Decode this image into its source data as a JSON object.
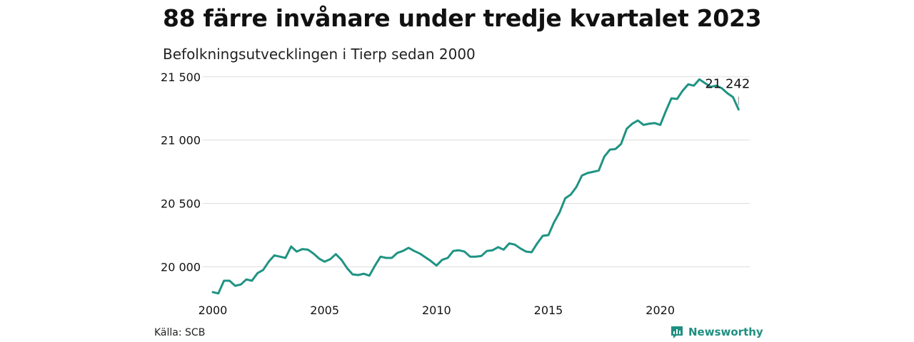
{
  "header": {
    "title": "88 färre invånare under tredje kvartalet 2023",
    "subtitle": "Befolkningsutvecklingen i Tierp sedan 2000"
  },
  "footer": {
    "source": "Källa: SCB",
    "brand": "Newsworthy",
    "brand_icon": "newsworthy-logo-icon"
  },
  "colors": {
    "line": "#1f9383",
    "grid": "#dddddd",
    "brand": "#1f8f80"
  },
  "chart_data": {
    "type": "line",
    "title": "88 färre invånare under tredje kvartalet 2023",
    "subtitle": "Befolkningsutvecklingen i Tierp sedan 2000",
    "xlabel": "",
    "ylabel": "",
    "xlim": [
      2000,
      2024
    ],
    "ylim": [
      19800,
      21600
    ],
    "y_ticks": [
      20000,
      20500,
      21000,
      21500
    ],
    "y_tick_labels": [
      "20 000",
      "20 500",
      "21 000",
      "21 500"
    ],
    "x_ticks": [
      2000,
      2005,
      2010,
      2015,
      2020
    ],
    "x_tick_labels": [
      "2000",
      "2005",
      "2010",
      "2015",
      "2020"
    ],
    "grid": true,
    "end_label": "21 242",
    "series": [
      {
        "x": [
          2000.0,
          2000.25,
          2000.5,
          2000.75,
          2001.0,
          2001.25,
          2001.5,
          2001.75,
          2002.0,
          2002.25,
          2002.5,
          2002.75,
          2003.0,
          2003.25,
          2003.5,
          2003.75,
          2004.0,
          2004.25,
          2004.5,
          2004.75,
          2005.0,
          2005.25,
          2005.5,
          2005.75,
          2006.0,
          2006.25,
          2006.5,
          2006.75,
          2007.0,
          2007.25,
          2007.5,
          2007.75,
          2008.0,
          2008.25,
          2008.5,
          2008.75,
          2009.0,
          2009.25,
          2009.5,
          2009.75,
          2010.0,
          2010.25,
          2010.5,
          2010.75,
          2011.0,
          2011.25,
          2011.5,
          2011.75,
          2012.0,
          2012.25,
          2012.5,
          2012.75,
          2013.0,
          2013.25,
          2013.5,
          2013.75,
          2014.0,
          2014.25,
          2014.5,
          2014.75,
          2015.0,
          2015.25,
          2015.5,
          2015.75,
          2016.0,
          2016.25,
          2016.5,
          2016.75,
          2017.0,
          2017.25,
          2017.5,
          2017.75,
          2018.0,
          2018.25,
          2018.5,
          2018.75,
          2019.0,
          2019.25,
          2019.5,
          2019.75,
          2020.0,
          2020.25,
          2020.5,
          2020.75,
          2021.0,
          2021.25,
          2021.5,
          2021.75,
          2022.0,
          2022.25,
          2022.5,
          2022.75,
          2023.0,
          2023.25,
          2023.5
        ],
        "values": [
          19800,
          19790,
          19890,
          19890,
          19850,
          19860,
          19900,
          19890,
          19950,
          19975,
          20040,
          20090,
          20080,
          20070,
          20160,
          20120,
          20140,
          20135,
          20105,
          20065,
          20040,
          20060,
          20100,
          20055,
          19990,
          19940,
          19935,
          19945,
          19930,
          20010,
          20080,
          20070,
          20070,
          20110,
          20125,
          20150,
          20125,
          20105,
          20075,
          20045,
          20010,
          20055,
          20070,
          20125,
          20130,
          20120,
          20080,
          20080,
          20085,
          20125,
          20130,
          20155,
          20135,
          20185,
          20175,
          20145,
          20120,
          20115,
          20185,
          20245,
          20250,
          20350,
          20430,
          20540,
          20570,
          20630,
          20720,
          20740,
          20750,
          20760,
          20870,
          20925,
          20930,
          20970,
          21090,
          21130,
          21155,
          21120,
          21130,
          21135,
          21120,
          21230,
          21330,
          21325,
          21390,
          21440,
          21430,
          21480,
          21450,
          21420,
          21430,
          21410,
          21370,
          21340,
          21242
        ]
      }
    ]
  }
}
